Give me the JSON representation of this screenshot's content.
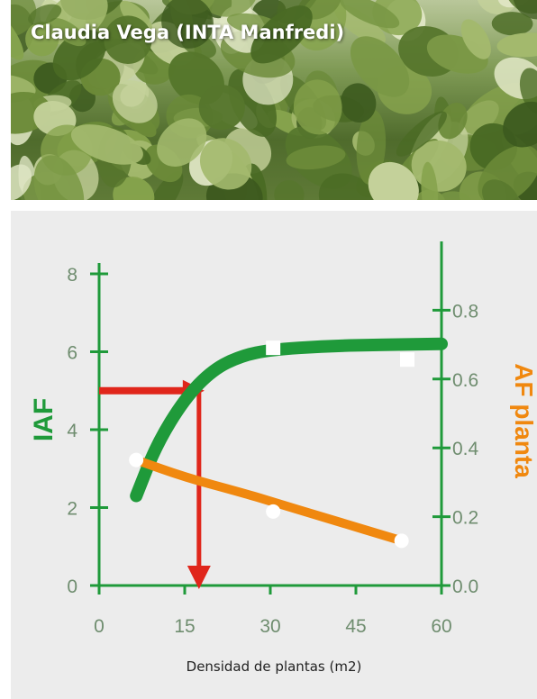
{
  "photo": {
    "credit": "Claudia Vega (INTA Manfredi)"
  },
  "colors": {
    "green": "#1f9a3a",
    "orange": "#f0880f",
    "red": "#e0261b",
    "axis": "#1f9a3a",
    "tick_text": "#6f8d6f"
  },
  "chart_data": {
    "type": "line",
    "xlabel": "Densidad de plantas (m2)",
    "ylabel_left": "IAF",
    "ylabel_right": "AF planta",
    "x_ticks": [
      "0",
      "15",
      "30",
      "45",
      "60"
    ],
    "y_left_ticks": [
      "0",
      "2",
      "4",
      "6",
      "8"
    ],
    "y_right_ticks": [
      "0.0",
      "0.2",
      "0.4",
      "0.6",
      "0.8"
    ],
    "xlim": [
      0,
      60
    ],
    "ylim_left": [
      0,
      8
    ],
    "ylim_right": [
      0,
      1.0
    ],
    "series": [
      {
        "axis": "left",
        "color": "#1f9a3a",
        "marker": "square",
        "curve": [
          [
            6.5,
            2.3
          ],
          [
            10,
            3.6
          ],
          [
            15,
            4.8
          ],
          [
            20,
            5.55
          ],
          [
            25,
            5.9
          ],
          [
            30,
            6.05
          ],
          [
            40,
            6.15
          ],
          [
            50,
            6.18
          ],
          [
            60,
            6.2
          ]
        ],
        "points": [
          [
            30.5,
            6.1
          ],
          [
            54,
            5.8
          ]
        ]
      },
      {
        "axis": "right",
        "color": "#f0880f",
        "marker": "circle",
        "curve": [
          [
            6.5,
            0.365
          ],
          [
            15,
            0.315
          ],
          [
            25,
            0.27
          ],
          [
            30,
            0.245
          ],
          [
            40,
            0.195
          ],
          [
            53,
            0.13
          ]
        ],
        "points": [
          [
            6.5,
            0.365
          ],
          [
            30.5,
            0.215
          ],
          [
            53,
            0.13
          ]
        ]
      }
    ],
    "annotations": [
      {
        "type": "arrow-horizontal",
        "color": "#e0261b",
        "from": [
          0,
          5.0
        ],
        "to": [
          17.5,
          5.0
        ]
      },
      {
        "type": "arrow-vertical",
        "color": "#e0261b",
        "from": [
          17.5,
          5.0
        ],
        "to": [
          17.5,
          0
        ]
      }
    ]
  }
}
